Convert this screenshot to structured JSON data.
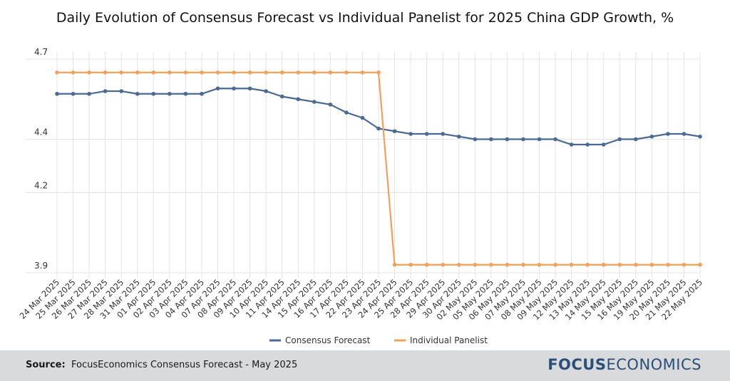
{
  "title": "Daily Evolution of Consensus Forecast vs Individual Panelist for 2025 China GDP Growth, %",
  "footer": {
    "source_label": "Source:",
    "source_text": "FocusEconomics Consensus Forecast - May 2025",
    "logo_bold": "FOCUS",
    "logo_light": "ECONOMICS"
  },
  "colors": {
    "consensus": "#4a6a92",
    "panelist": "#f1a15a",
    "grid": "#e4e4e4",
    "footer_bg": "#d9dadc",
    "logo": "#2b4f77"
  },
  "chart_data": {
    "type": "line",
    "title": "Daily Evolution of Consensus Forecast vs Individual Panelist for 2025 China GDP Growth, %",
    "xlabel": "",
    "ylabel": "",
    "ylim": [
      3.9,
      4.7
    ],
    "yticks": [
      3.9,
      4.2,
      4.4,
      4.7
    ],
    "grid": true,
    "legend_position": "bottom",
    "categories": [
      "24 Mar 2025",
      "25 Mar 2025",
      "26 Mar 2025",
      "27 Mar 2025",
      "28 Mar 2025",
      "31 Mar 2025",
      "01 Apr 2025",
      "02 Apr 2025",
      "03 Apr 2025",
      "04 Apr 2025",
      "07 Apr 2025",
      "08 Apr 2025",
      "09 Apr 2025",
      "10 Apr 2025",
      "11 Apr 2025",
      "14 Apr 2025",
      "15 Apr 2025",
      "16 Apr 2025",
      "17 Apr 2025",
      "22 Apr 2025",
      "23 Apr 2025",
      "24 Apr 2025",
      "25 Apr 2025",
      "28 Apr 2025",
      "29 Apr 2025",
      "30 Apr 2025",
      "02 May 2025",
      "05 May 2025",
      "06 May 2025",
      "07 May 2025",
      "08 May 2025",
      "09 May 2025",
      "12 May 2025",
      "13 May 2025",
      "14 May 2025",
      "15 May 2025",
      "16 May 2025",
      "19 May 2025",
      "20 May 2025",
      "21 May 2025",
      "22 May 2025"
    ],
    "series": [
      {
        "name": "Consensus Forecast",
        "color": "#4a6a92",
        "values": [
          4.57,
          4.57,
          4.57,
          4.58,
          4.58,
          4.57,
          4.57,
          4.57,
          4.57,
          4.57,
          4.59,
          4.59,
          4.59,
          4.58,
          4.56,
          4.55,
          4.54,
          4.53,
          4.5,
          4.48,
          4.44,
          4.43,
          4.42,
          4.42,
          4.42,
          4.41,
          4.4,
          4.4,
          4.4,
          4.4,
          4.4,
          4.4,
          4.38,
          4.38,
          4.38,
          4.4,
          4.4,
          4.41,
          4.42,
          4.42,
          4.41
        ]
      },
      {
        "name": "Individual Panelist",
        "color": "#f1a15a",
        "values": [
          4.65,
          4.65,
          4.65,
          4.65,
          4.65,
          4.65,
          4.65,
          4.65,
          4.65,
          4.65,
          4.65,
          4.65,
          4.65,
          4.65,
          4.65,
          4.65,
          4.65,
          4.65,
          4.65,
          4.65,
          4.65,
          3.93,
          3.93,
          3.93,
          3.93,
          3.93,
          3.93,
          3.93,
          3.93,
          3.93,
          3.93,
          3.93,
          3.93,
          3.93,
          3.93,
          3.93,
          3.93,
          3.93,
          3.93,
          3.93,
          3.93
        ]
      }
    ]
  }
}
